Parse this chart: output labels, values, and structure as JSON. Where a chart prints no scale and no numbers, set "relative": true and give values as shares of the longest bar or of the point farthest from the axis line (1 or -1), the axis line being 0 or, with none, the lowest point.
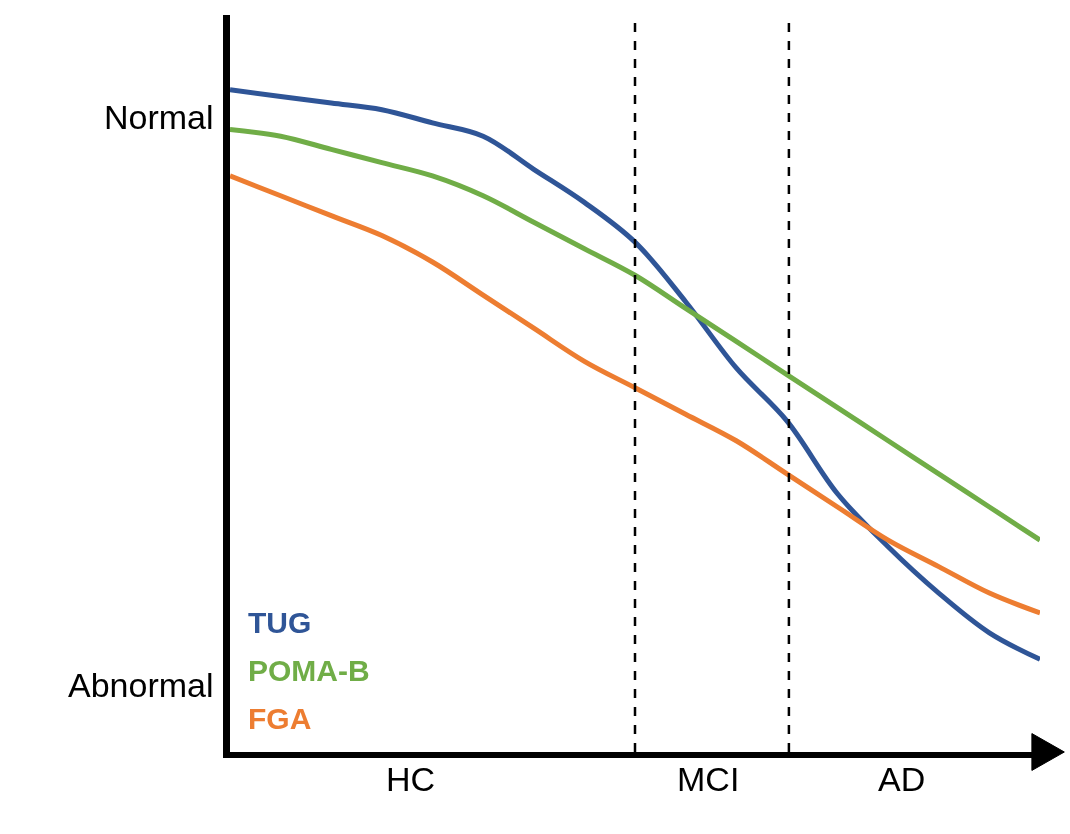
{
  "chart_data": {
    "type": "line",
    "relative": true,
    "legend": "bottom left",
    "line_style": "solid",
    "marker": "none",
    "categories": [
      null,
      null,
      null,
      null,
      null,
      null,
      null,
      null,
      null,
      null,
      null,
      null,
      null,
      null,
      null,
      null,
      null
    ],
    "series": [
      {
        "name": "TUG",
        "color": "#2f5597",
        "values": [
          1.0,
          0.99,
          0.98,
          0.97,
          0.95,
          0.93,
          0.88,
          0.83,
          0.77,
          0.68,
          0.58,
          0.5,
          0.39,
          0.31,
          0.24,
          0.18,
          0.14
        ]
      },
      {
        "name": "POMA-B",
        "color": "#70ad47",
        "values": [
          0.94,
          0.93,
          0.91,
          0.89,
          0.87,
          0.84,
          0.8,
          0.76,
          0.72,
          0.67,
          0.62,
          0.57,
          0.52,
          0.47,
          0.42,
          0.37,
          0.32
        ]
      },
      {
        "name": "FGA",
        "color": "#ed7d31",
        "values": [
          0.87,
          0.84,
          0.81,
          0.78,
          0.74,
          0.69,
          0.64,
          0.59,
          0.55,
          0.51,
          0.47,
          0.42,
          0.37,
          0.32,
          0.28,
          0.24,
          0.21
        ]
      }
    ],
    "annotations": [
      "Normal",
      "Abnormal",
      "HC",
      "MCI",
      "AD"
    ]
  }
}
